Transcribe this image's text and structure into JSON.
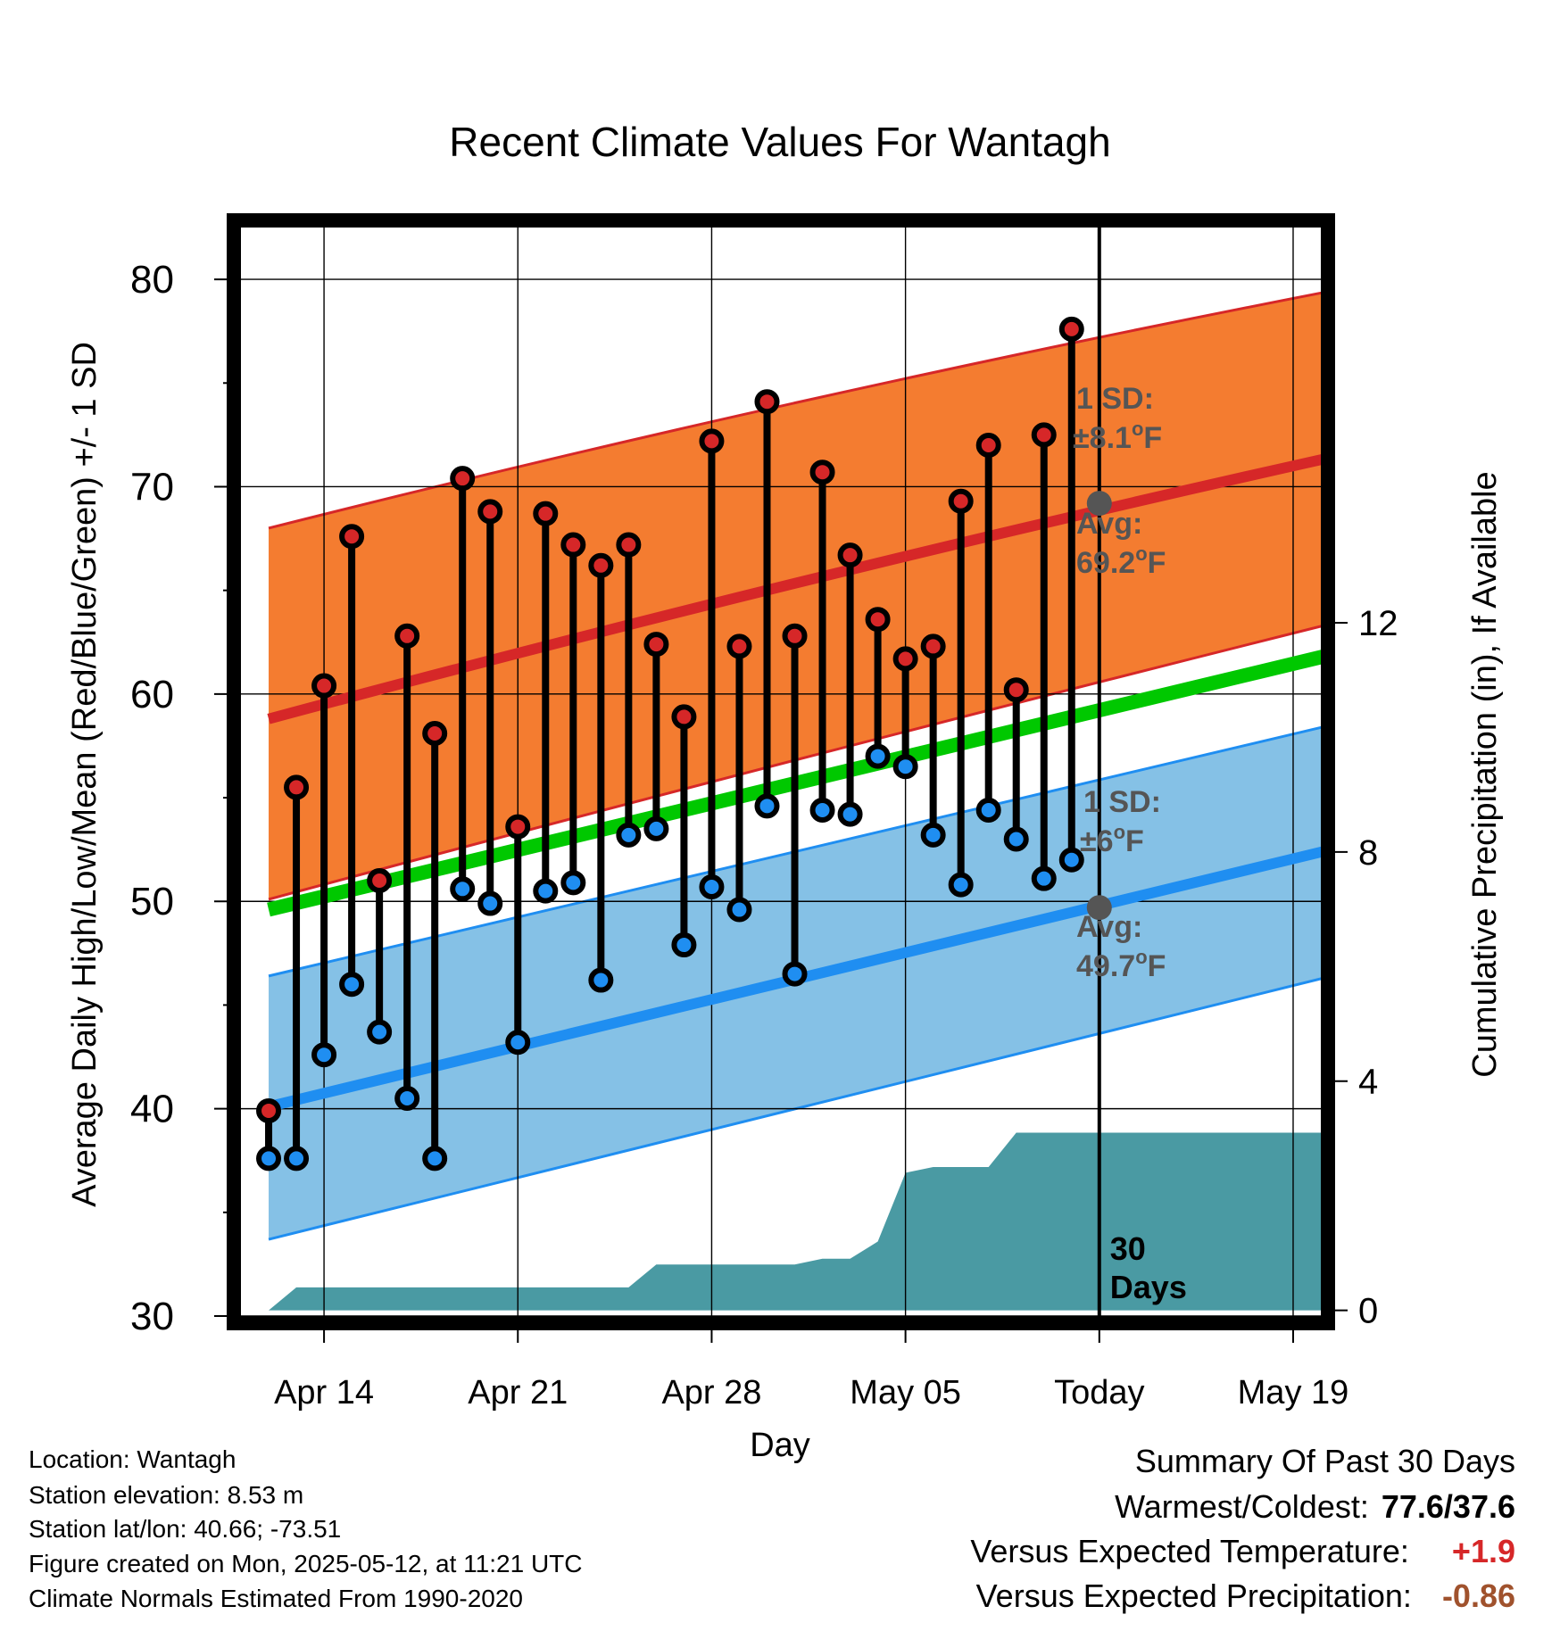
{
  "chart_data": {
    "type": "line",
    "title": "Recent Climate Values For Wantagh",
    "xlabel": "Day",
    "ylabel": "Average Daily High/Low/Mean (Red/Blue/Green) +/- 1 SD",
    "y2label": "Cumulative Precipitation (in), If Available",
    "x_tick_labels": [
      "Apr 14",
      "Apr 21",
      "Apr 28",
      "May 05",
      "Today",
      "May 19"
    ],
    "x_tick_dates": [
      "2025-04-14",
      "2025-04-21",
      "2025-04-28",
      "2025-05-05",
      "2025-05-12",
      "2025-05-19"
    ],
    "xlim": [
      "2025-04-11",
      "2025-05-20"
    ],
    "ylim": [
      30,
      82.5
    ],
    "y_ticks": [
      30,
      40,
      50,
      60,
      70,
      80
    ],
    "y2lim": [
      -0.1,
      18.9
    ],
    "y2_ticks": [
      0,
      4,
      8,
      12
    ],
    "grid": true,
    "today": "2025-05-12",
    "period_label": "30 Days",
    "normals": {
      "dates": [
        "2025-04-12",
        "2025-05-21"
      ],
      "avg_high": [
        58.8,
        71.6
      ],
      "high_plus_sd": [
        68.0,
        79.6
      ],
      "high_minus_sd": [
        50.1,
        63.6
      ],
      "avg_mean": [
        49.6,
        62.1
      ],
      "avg_low": [
        40.1,
        52.7
      ],
      "low_plus_sd": [
        46.4,
        58.7
      ],
      "low_minus_sd": [
        33.7,
        46.6
      ]
    },
    "annotations": {
      "high_sd_label": "1 SD:",
      "high_sd_value": "±8.1°F",
      "high_avg_label": "Avg:",
      "high_avg_value": "69.2°F",
      "high_avg_point": 69.2,
      "low_sd_label": "1 SD:",
      "low_sd_value": "±6°F",
      "low_avg_label": "Avg:",
      "low_avg_value": "49.7°F",
      "low_avg_point": 49.7
    },
    "series": [
      {
        "name": "High",
        "color": "#d62728",
        "dates": [
          "2025-04-12",
          "2025-04-13",
          "2025-04-14",
          "2025-04-15",
          "2025-04-16",
          "2025-04-17",
          "2025-04-18",
          "2025-04-19",
          "2025-04-20",
          "2025-04-21",
          "2025-04-22",
          "2025-04-23",
          "2025-04-24",
          "2025-04-25",
          "2025-04-26",
          "2025-04-27",
          "2025-04-28",
          "2025-04-29",
          "2025-04-30",
          "2025-05-01",
          "2025-05-02",
          "2025-05-03",
          "2025-05-04",
          "2025-05-05",
          "2025-05-06",
          "2025-05-07",
          "2025-05-08",
          "2025-05-09",
          "2025-05-10",
          "2025-05-11"
        ],
        "values": [
          39.9,
          55.5,
          60.4,
          67.6,
          51.0,
          62.8,
          58.1,
          70.4,
          68.8,
          53.6,
          68.7,
          67.2,
          66.2,
          67.2,
          62.4,
          58.9,
          72.2,
          62.3,
          74.1,
          62.8,
          70.7,
          66.7,
          63.6,
          61.7,
          62.3,
          69.3,
          72.0,
          60.2,
          72.5,
          77.6
        ]
      },
      {
        "name": "Low",
        "color": "#1f8ef1",
        "dates": [
          "2025-04-12",
          "2025-04-13",
          "2025-04-14",
          "2025-04-15",
          "2025-04-16",
          "2025-04-17",
          "2025-04-18",
          "2025-04-19",
          "2025-04-20",
          "2025-04-21",
          "2025-04-22",
          "2025-04-23",
          "2025-04-24",
          "2025-04-25",
          "2025-04-26",
          "2025-04-27",
          "2025-04-28",
          "2025-04-29",
          "2025-04-30",
          "2025-05-01",
          "2025-05-02",
          "2025-05-03",
          "2025-05-04",
          "2025-05-05",
          "2025-05-06",
          "2025-05-07",
          "2025-05-08",
          "2025-05-09",
          "2025-05-10",
          "2025-05-11"
        ],
        "values": [
          37.6,
          37.6,
          42.6,
          46.0,
          43.7,
          40.5,
          37.6,
          50.6,
          49.9,
          43.2,
          50.5,
          50.9,
          46.2,
          53.2,
          53.5,
          47.9,
          50.7,
          49.6,
          54.6,
          46.5,
          54.4,
          54.2,
          57.0,
          56.5,
          53.2,
          50.8,
          54.4,
          53.0,
          51.1,
          52.0
        ]
      },
      {
        "name": "Cumulative Precipitation",
        "color": "#4a9aa3",
        "dates": [
          "2025-04-12",
          "2025-04-13",
          "2025-04-25",
          "2025-04-26",
          "2025-05-01",
          "2025-05-02",
          "2025-05-03",
          "2025-05-04",
          "2025-05-05",
          "2025-05-06",
          "2025-05-08",
          "2025-05-09",
          "2025-05-21"
        ],
        "values": [
          0.0,
          0.4,
          0.4,
          0.8,
          0.8,
          0.9,
          0.9,
          1.2,
          2.4,
          2.5,
          2.5,
          3.1,
          3.1
        ]
      }
    ]
  },
  "footer": {
    "location": "Location: Wantagh",
    "elevation": "Station elevation: 8.53 m",
    "latlon": "Station lat/lon: 40.66; -73.51",
    "created": "Figure created on Mon, 2025-05-12, at 11:21 UTC",
    "normals": "Climate Normals Estimated From 1990-2020"
  },
  "summary": {
    "title": "Summary Of Past 30 Days",
    "warmest_coldest_label": "Warmest/Coldest:",
    "warmest_coldest_value": "77.6/37.6",
    "temp_label": "Versus Expected Temperature:",
    "temp_value": "+1.9",
    "temp_color": "#d62728",
    "precip_label": "Versus Expected Precipitation:",
    "precip_value": "-0.86",
    "precip_color": "#a0522d"
  }
}
